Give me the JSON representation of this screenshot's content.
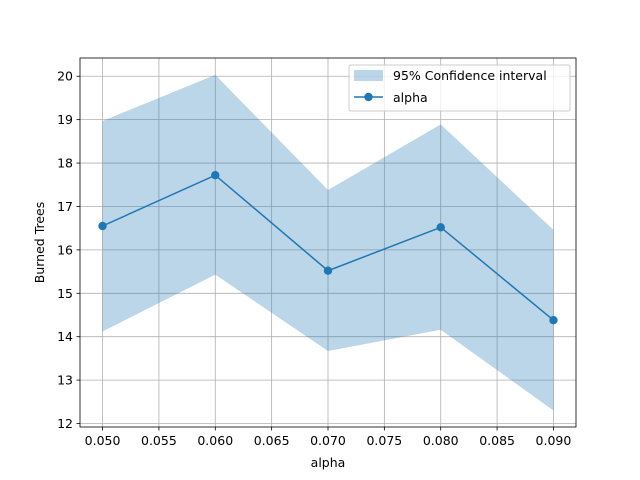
{
  "chart_data": {
    "type": "line",
    "title": "",
    "xlabel": "alpha",
    "ylabel": "Burned Trees",
    "x": [
      0.05,
      0.06,
      0.07,
      0.08,
      0.09
    ],
    "series": [
      {
        "name": "alpha",
        "values": [
          16.55,
          17.72,
          15.52,
          16.52,
          14.38
        ],
        "color": "#1f77b4",
        "marker": "circle"
      }
    ],
    "confidence_band": {
      "name": "95% Confidence interval",
      "lower": [
        14.12,
        15.43,
        13.67,
        14.16,
        12.3
      ],
      "upper": [
        18.97,
        20.03,
        17.38,
        18.89,
        16.46
      ],
      "color": "#1f77b4",
      "opacity": 0.3
    },
    "xlim": [
      0.048,
      0.092
    ],
    "ylim": [
      11.92,
      20.42
    ],
    "xticks": [
      0.05,
      0.055,
      0.06,
      0.065,
      0.07,
      0.075,
      0.08,
      0.085,
      0.09
    ],
    "xtick_labels": [
      "0.050",
      "0.055",
      "0.060",
      "0.065",
      "0.070",
      "0.075",
      "0.080",
      "0.085",
      "0.090"
    ],
    "yticks": [
      12,
      13,
      14,
      15,
      16,
      17,
      18,
      19,
      20
    ],
    "ytick_labels": [
      "12",
      "13",
      "14",
      "15",
      "16",
      "17",
      "18",
      "19",
      "20"
    ],
    "grid": true,
    "legend_position": "top-right"
  }
}
